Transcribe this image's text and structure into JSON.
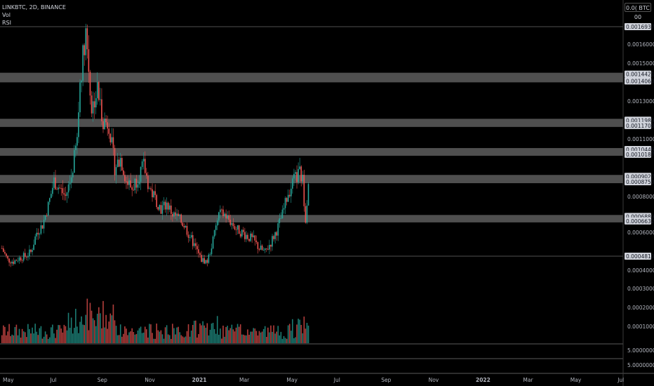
{
  "header": {
    "symbol_line": "LINKBTC, 2D, BINANCE",
    "vol_label": "Vol",
    "rsi_label": "RSI",
    "currency_button": "0.0( BTC 00"
  },
  "colors": {
    "background": "#000000",
    "up": "#26a69a",
    "down": "#ef5350",
    "zone": "#5d5d5d",
    "axis_text": "#b2b5be",
    "label_bg": "#d1d4dc"
  },
  "chart_data": {
    "type": "candlestick",
    "symbol": "LINKBTC",
    "interval": "2D",
    "exchange": "BINANCE",
    "price_axis_ticks": [
      "0.00160000",
      "0.00150000",
      "0.00130000",
      "0.00110000",
      "0.00080000",
      "0.00060000",
      "0.00040000",
      "0.00030000",
      "0.00020000",
      "0.00010000"
    ],
    "price_ylim": [
      4e-05,
      0.00174
    ],
    "time_axis_labels": [
      {
        "label": "May",
        "month": 0
      },
      {
        "label": "Jul",
        "month": 2
      },
      {
        "label": "Sep",
        "month": 4
      },
      {
        "label": "Nov",
        "month": 6
      },
      {
        "label": "2021",
        "month": 8
      },
      {
        "label": "Mar",
        "month": 10
      },
      {
        "label": "May",
        "month": 12
      },
      {
        "label": "Jul",
        "month": 14
      },
      {
        "label": "Sep",
        "month": 16
      },
      {
        "label": "Nov",
        "month": 18
      },
      {
        "label": "2022",
        "month": 20
      },
      {
        "label": "Mar",
        "month": 22
      },
      {
        "label": "May",
        "month": 24
      },
      {
        "label": "Jul",
        "month": 26
      }
    ],
    "zones": [
      {
        "upper": "0.00144211",
        "lower": "0.00140606",
        "upper_value": 0.00144211,
        "lower_value": 0.00140606
      },
      {
        "upper": "0.00119890",
        "lower": "0.00117086",
        "upper_value": 0.0011989,
        "lower_value": 0.00117086
      },
      {
        "upper": "0.00104460",
        "lower": "0.00101877",
        "upper_value": 0.0010446,
        "lower_value": 0.00101877
      },
      {
        "upper": "0.00090276",
        "lower": "0.00087500",
        "upper_value": 0.00090276,
        "lower_value": 0.000875
      },
      {
        "upper": "0.00068896",
        "lower": "0.00066320",
        "upper_value": 0.00068896,
        "lower_value": 0.0006632
      }
    ],
    "lines": [
      {
        "label": "0.00169379",
        "value": 0.00169379
      },
      {
        "label": "0.00048100",
        "value": 0.000481
      }
    ],
    "price_path": [
      [
        0,
        0.00052
      ],
      [
        4,
        0.00046
      ],
      [
        8,
        0.00045
      ],
      [
        12,
        0.00047
      ],
      [
        16,
        0.00048
      ],
      [
        20,
        0.0005
      ],
      [
        24,
        0.0006
      ],
      [
        28,
        0.00064
      ],
      [
        32,
        0.00075
      ],
      [
        36,
        0.00088
      ],
      [
        40,
        0.00084
      ],
      [
        44,
        0.0008
      ],
      [
        48,
        0.0009
      ],
      [
        52,
        0.0011
      ],
      [
        54,
        0.0014
      ],
      [
        58,
        0.00168
      ],
      [
        62,
        0.00126
      ],
      [
        66,
        0.00136
      ],
      [
        70,
        0.0012
      ],
      [
        74,
        0.00118
      ],
      [
        78,
        0.00095
      ],
      [
        82,
        0.001
      ],
      [
        86,
        0.00088
      ],
      [
        90,
        0.00084
      ],
      [
        94,
        0.0009
      ],
      [
        98,
        0.00096
      ],
      [
        102,
        0.00084
      ],
      [
        106,
        0.00079
      ],
      [
        110,
        0.00073
      ],
      [
        114,
        0.00076
      ],
      [
        118,
        0.0007
      ],
      [
        122,
        0.00068
      ],
      [
        126,
        0.00064
      ],
      [
        130,
        0.00058
      ],
      [
        134,
        0.00052
      ],
      [
        138,
        0.00046
      ],
      [
        142,
        0.00045
      ],
      [
        146,
        0.00056
      ],
      [
        150,
        0.0007
      ],
      [
        154,
        0.0007
      ],
      [
        158,
        0.00066
      ],
      [
        162,
        0.00062
      ],
      [
        166,
        0.0006
      ],
      [
        170,
        0.00058
      ],
      [
        174,
        0.00056
      ],
      [
        178,
        0.00052
      ],
      [
        182,
        0.0005
      ],
      [
        186,
        0.00055
      ],
      [
        190,
        0.00061
      ],
      [
        194,
        0.0007
      ],
      [
        198,
        0.00082
      ],
      [
        202,
        0.00088
      ],
      [
        206,
        0.00092
      ],
      [
        208,
        0.00088
      ],
      [
        210,
        0.00068
      ],
      [
        212,
        0.00088
      ]
    ],
    "volume": {
      "axis_ticks": [
        "5.00000000"
      ]
    },
    "rsi": {
      "axis_ticks": [
        "5.00000000"
      ]
    }
  }
}
